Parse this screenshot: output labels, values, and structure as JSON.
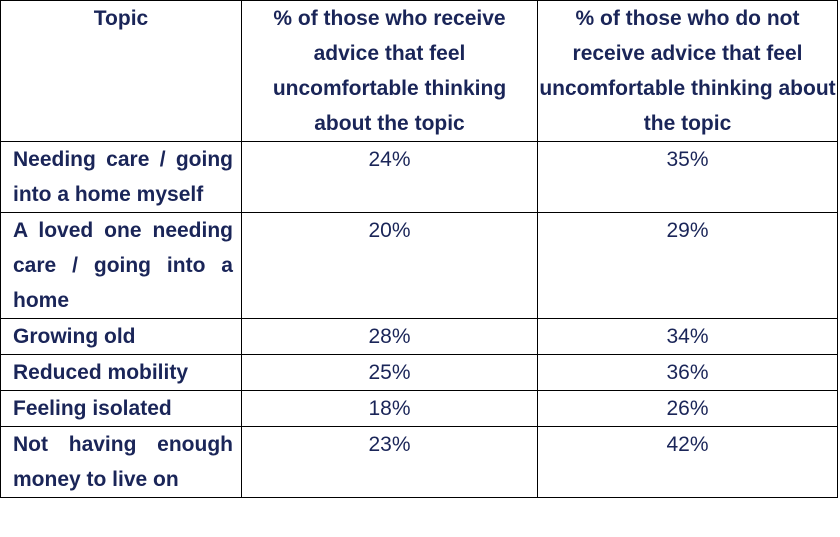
{
  "table": {
    "headers": [
      "Topic",
      "% of those who receive advice that feel uncomfortable thinking about the topic",
      "% of those who do not receive advice that feel uncomfortable thinking about the topic"
    ],
    "rows": [
      [
        "Needing care / going into a home myself",
        "24%",
        "35%"
      ],
      [
        "A loved one needing care / going into a home",
        "20%",
        "29%"
      ],
      [
        "Growing old",
        "28%",
        "34%"
      ],
      [
        "Reduced mobility",
        "25%",
        "36%"
      ],
      [
        "Feeling isolated",
        "18%",
        "26%"
      ],
      [
        "Not having enough money to live on",
        "23%",
        "42%"
      ]
    ]
  }
}
